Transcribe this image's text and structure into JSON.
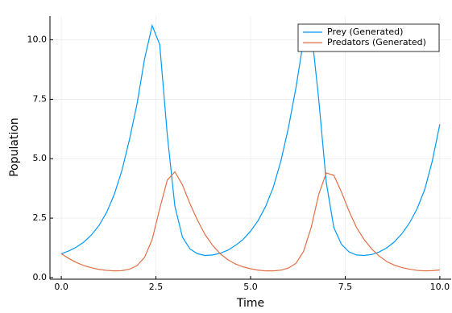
{
  "chart_data": {
    "type": "line",
    "x_label": "Time",
    "y_label": "Population",
    "x": [
      0,
      0.2,
      0.4,
      0.6,
      0.8,
      1.0,
      1.2,
      1.4,
      1.6,
      1.8,
      2.0,
      2.2,
      2.4,
      2.6,
      2.8,
      3.0,
      3.2,
      3.4,
      3.6,
      3.8,
      4.0,
      4.2,
      4.4,
      4.6,
      4.8,
      5.0,
      5.2,
      5.4,
      5.6,
      5.8,
      6.0,
      6.2,
      6.4,
      6.6,
      6.8,
      7.0,
      7.2,
      7.4,
      7.6,
      7.8,
      8.0,
      8.2,
      8.4,
      8.6,
      8.8,
      9.0,
      9.2,
      9.4,
      9.6,
      9.8,
      10.0
    ],
    "series": [
      {
        "name": "Prey (Generated)",
        "color": "#009af9",
        "values": [
          1.0,
          1.12,
          1.28,
          1.5,
          1.8,
          2.2,
          2.75,
          3.5,
          4.5,
          5.8,
          7.3,
          9.2,
          10.6,
          9.8,
          6.0,
          3.0,
          1.7,
          1.2,
          1.0,
          0.93,
          0.95,
          1.02,
          1.15,
          1.35,
          1.6,
          1.95,
          2.4,
          3.0,
          3.8,
          4.9,
          6.3,
          8.0,
          10.0,
          10.5,
          7.5,
          4.0,
          2.1,
          1.4,
          1.08,
          0.95,
          0.93,
          0.97,
          1.08,
          1.25,
          1.5,
          1.85,
          2.3,
          2.9,
          3.7,
          4.9,
          6.45
        ]
      },
      {
        "name": "Predators (Generated)",
        "color": "#e26f46",
        "values": [
          1.0,
          0.8,
          0.63,
          0.5,
          0.41,
          0.34,
          0.3,
          0.28,
          0.29,
          0.35,
          0.5,
          0.85,
          1.6,
          2.9,
          4.1,
          4.45,
          3.9,
          3.1,
          2.4,
          1.8,
          1.35,
          1.0,
          0.75,
          0.57,
          0.45,
          0.37,
          0.31,
          0.28,
          0.28,
          0.31,
          0.4,
          0.6,
          1.1,
          2.1,
          3.5,
          4.4,
          4.3,
          3.6,
          2.8,
          2.1,
          1.6,
          1.2,
          0.9,
          0.67,
          0.52,
          0.42,
          0.35,
          0.3,
          0.28,
          0.29,
          0.32
        ]
      }
    ],
    "xlim": [
      -0.3,
      10.3
    ],
    "ylim": [
      -0.07,
      11
    ],
    "xticks": [
      {
        "value": 0,
        "label": "0.0"
      },
      2.5,
      {
        "value": 5,
        "label": "5.0"
      },
      7.5,
      {
        "value": 10,
        "label": "10.0"
      }
    ],
    "yticks": [
      {
        "value": 0,
        "label": "0.0"
      },
      2.5,
      {
        "value": 5,
        "label": "5.0"
      },
      7.5,
      {
        "value": 10,
        "label": "10.0"
      }
    ],
    "grid": true,
    "legend": "top-right"
  }
}
